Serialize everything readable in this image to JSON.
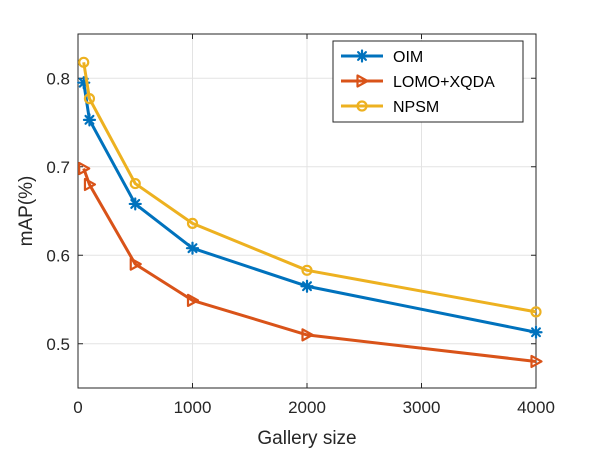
{
  "chart_data": {
    "type": "line",
    "xlabel": "Gallery size",
    "ylabel": "mAP(%)",
    "xlim": [
      0,
      4000
    ],
    "ylim": [
      0.45,
      0.85
    ],
    "xticks": [
      0,
      1000,
      2000,
      3000,
      4000
    ],
    "xtick_labels": [
      "0",
      "1000",
      "2000",
      "3000",
      "4000"
    ],
    "yticks": [
      0.5,
      0.6,
      0.7,
      0.8
    ],
    "ytick_labels": [
      "0.5",
      "0.6",
      "0.7",
      "0.8"
    ],
    "grid": true,
    "legend_position": "top-right",
    "series": [
      {
        "name": "OIM",
        "color": "#0072BD",
        "marker": "asterisk",
        "x": [
          50,
          100,
          500,
          1000,
          2000,
          4000
        ],
        "y": [
          0.795,
          0.753,
          0.658,
          0.608,
          0.565,
          0.513
        ]
      },
      {
        "name": "LOMO+XQDA",
        "color": "#D95319",
        "marker": "triangle-right",
        "x": [
          50,
          100,
          500,
          1000,
          2000,
          4000
        ],
        "y": [
          0.698,
          0.68,
          0.59,
          0.549,
          0.51,
          0.48
        ]
      },
      {
        "name": "NPSM",
        "color": "#EDB120",
        "marker": "circle",
        "x": [
          50,
          100,
          500,
          1000,
          2000,
          4000
        ],
        "y": [
          0.818,
          0.777,
          0.681,
          0.636,
          0.583,
          0.536
        ]
      }
    ]
  }
}
